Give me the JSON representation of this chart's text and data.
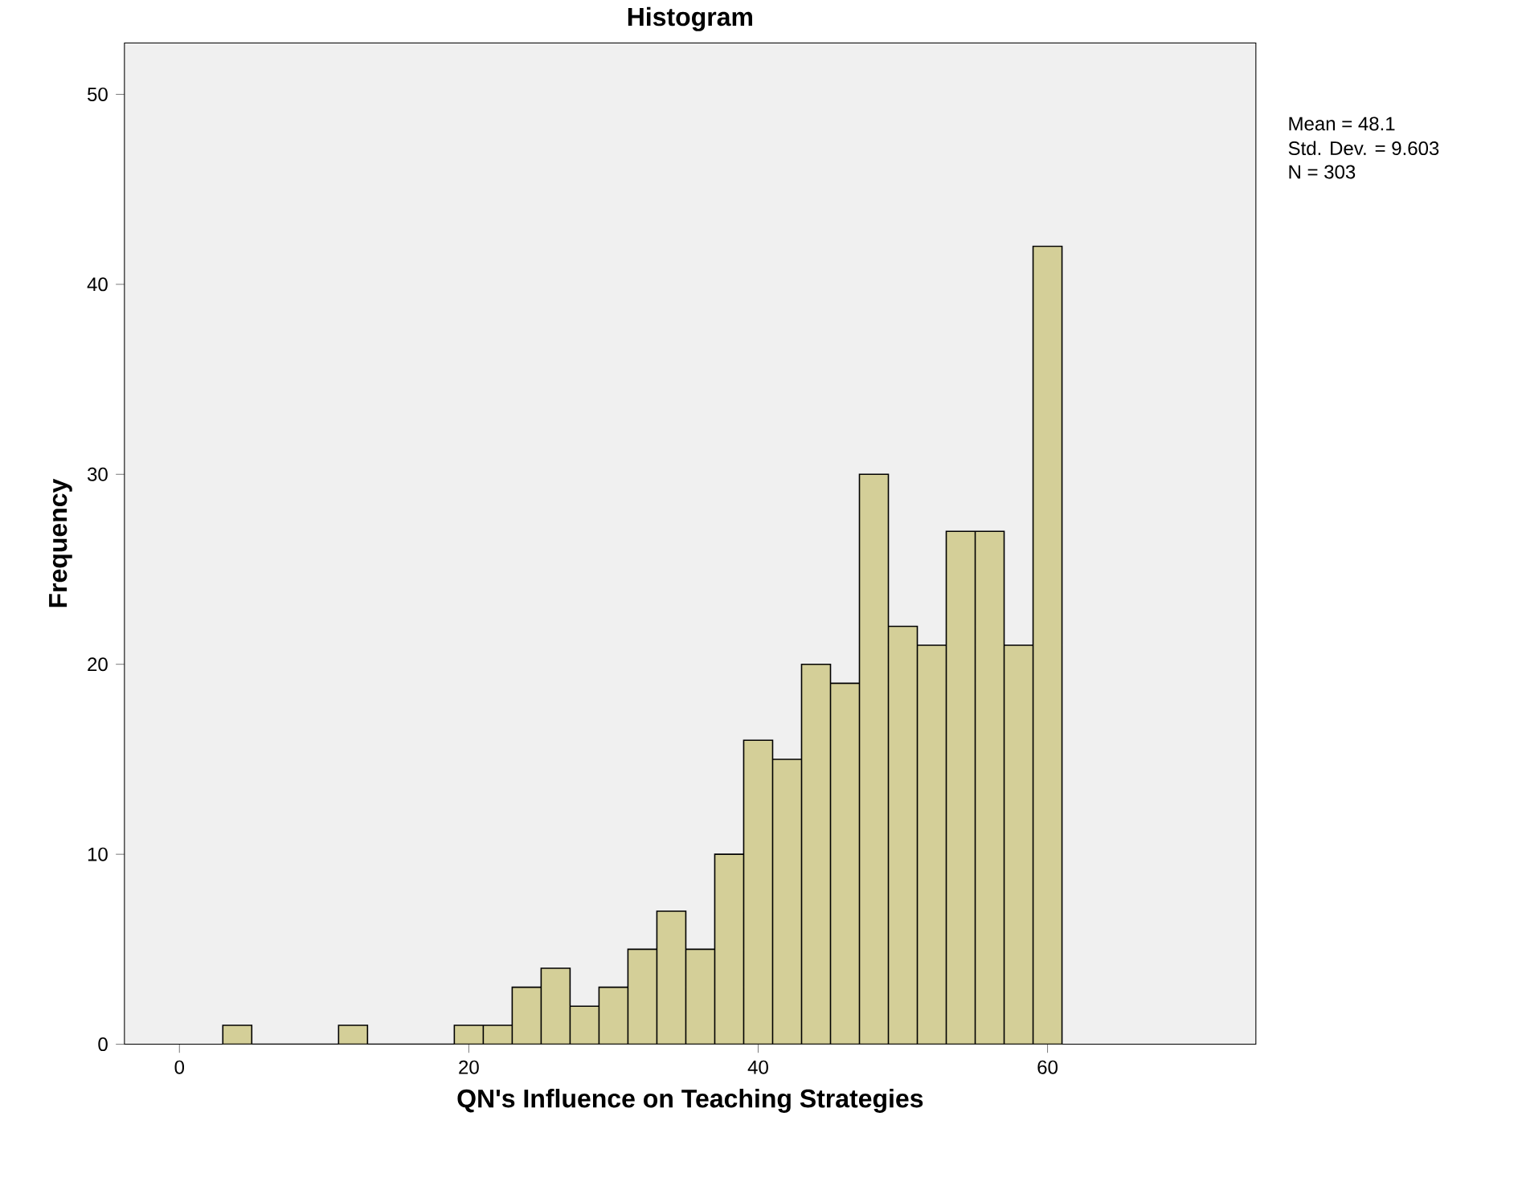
{
  "chart_data": {
    "type": "histogram",
    "title": "Histogram",
    "xlabel": "QN's Influence on Teaching Strategies",
    "ylabel": "Frequency",
    "bins": [
      3,
      5,
      7,
      9,
      11,
      13,
      15,
      17,
      19,
      21,
      23,
      25,
      27,
      29,
      31,
      33,
      35,
      37,
      39,
      41,
      43,
      45,
      47,
      49,
      51,
      53,
      55,
      57,
      59,
      61
    ],
    "values": [
      1,
      0,
      0,
      0,
      1,
      0,
      0,
      0,
      1,
      1,
      3,
      4,
      2,
      3,
      5,
      7,
      5,
      10,
      16,
      15,
      20,
      19,
      30,
      22,
      21,
      27,
      27,
      21,
      42
    ],
    "color": "#d4cf98",
    "xlim": [
      -3.8,
      74.4
    ],
    "ylim": [
      0,
      52.7
    ],
    "xticks": [
      0,
      20,
      40,
      60
    ],
    "yticks": [
      0,
      10,
      20,
      30,
      40,
      50
    ],
    "annotations": [
      "Mean = 48.1",
      "Std. Dev. = 9.603",
      "N = 303"
    ]
  }
}
